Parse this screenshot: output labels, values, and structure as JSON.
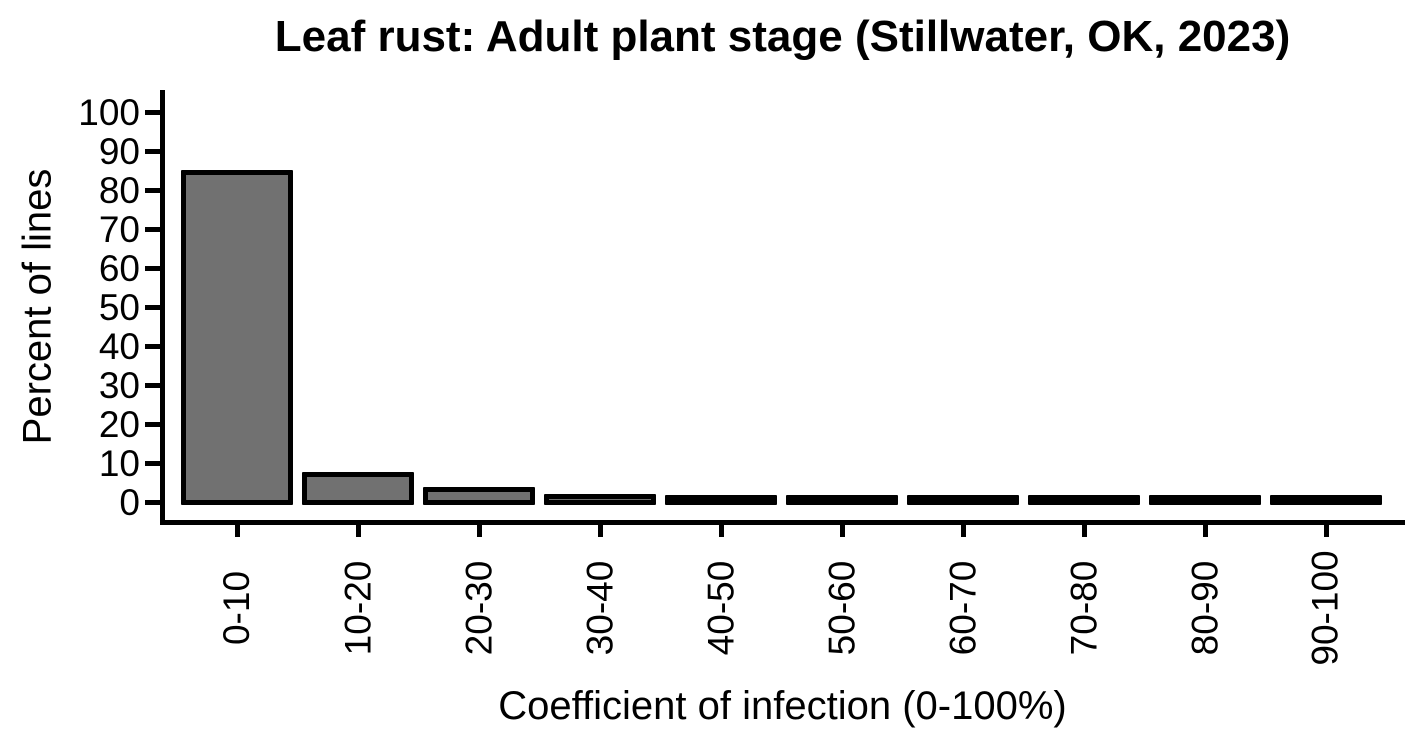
{
  "chart_data": {
    "type": "bar",
    "title": "Leaf rust: Adult plant stage (Stillwater, OK, 2023)",
    "xlabel": "Coefficient of infection (0-100%)",
    "ylabel": "Percent of lines",
    "categories": [
      "0-10",
      "10-20",
      "20-30",
      "30-40",
      "40-50",
      "50-60",
      "60-70",
      "70-80",
      "80-90",
      "90-100"
    ],
    "values": [
      84.5,
      7.2,
      3.3,
      1.5,
      1.0,
      0.8,
      0.35,
      0.35,
      0.5,
      0.35
    ],
    "y_ticks": [
      0,
      10,
      20,
      30,
      40,
      50,
      60,
      70,
      80,
      90,
      100
    ],
    "ylim": [
      0,
      100
    ],
    "grid": false,
    "legend_position": "none",
    "x_tick_label_rotation_deg": -90,
    "bar_fill": "#717171",
    "bar_stroke": "#000000",
    "background": "#ffffff",
    "text_color": "#000000"
  }
}
